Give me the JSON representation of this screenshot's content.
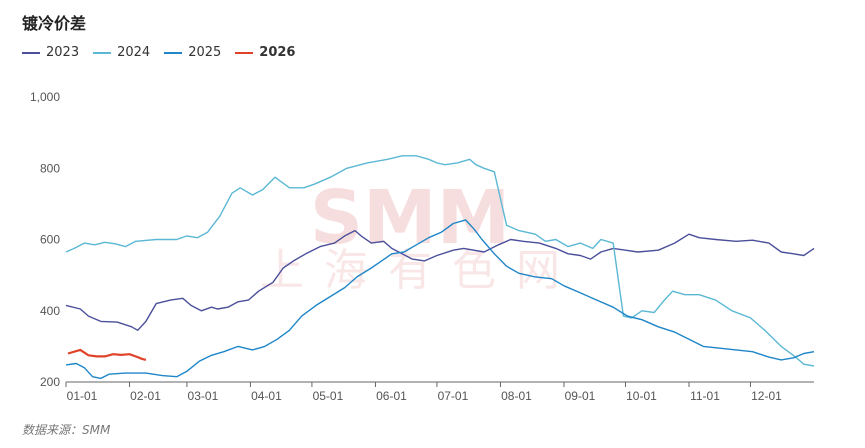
{
  "title": "镀冷价差",
  "source": "数据来源：SMM",
  "watermark": {
    "big": "SMM",
    "small": "上海有色网"
  },
  "chart_data": {
    "type": "line",
    "title": "镀冷价差",
    "ylim": [
      200,
      1000
    ],
    "yticks": [
      200,
      400,
      600,
      800,
      1000
    ],
    "ytick_labels": [
      "200",
      "400",
      "600",
      "800",
      "1,000"
    ],
    "xlim": [
      1,
      366
    ],
    "xticks": [
      {
        "label": "01-01",
        "day": 1
      },
      {
        "label": "02-01",
        "day": 32
      },
      {
        "label": "03-01",
        "day": 60
      },
      {
        "label": "04-01",
        "day": 91
      },
      {
        "label": "05-01",
        "day": 121
      },
      {
        "label": "06-01",
        "day": 152
      },
      {
        "label": "07-01",
        "day": 182
      },
      {
        "label": "08-01",
        "day": 213
      },
      {
        "label": "09-01",
        "day": 244
      },
      {
        "label": "10-01",
        "day": 274
      },
      {
        "label": "11-01",
        "day": 305
      },
      {
        "label": "12-01",
        "day": 335
      }
    ],
    "legend_position": "top-left",
    "grid": false,
    "series": [
      {
        "name": "2023",
        "color": "#4b4f9a",
        "points": [
          [
            1,
            415
          ],
          [
            8,
            405
          ],
          [
            12,
            385
          ],
          [
            18,
            370
          ],
          [
            26,
            368
          ],
          [
            33,
            355
          ],
          [
            36,
            345
          ],
          [
            40,
            370
          ],
          [
            45,
            420
          ],
          [
            52,
            430
          ],
          [
            58,
            435
          ],
          [
            62,
            415
          ],
          [
            67,
            400
          ],
          [
            72,
            410
          ],
          [
            75,
            405
          ],
          [
            80,
            410
          ],
          [
            85,
            425
          ],
          [
            90,
            430
          ],
          [
            95,
            455
          ],
          [
            102,
            480
          ],
          [
            107,
            520
          ],
          [
            112,
            540
          ],
          [
            118,
            560
          ],
          [
            125,
            580
          ],
          [
            132,
            590
          ],
          [
            137,
            610
          ],
          [
            142,
            625
          ],
          [
            145,
            610
          ],
          [
            150,
            590
          ],
          [
            156,
            595
          ],
          [
            160,
            575
          ],
          [
            165,
            560
          ],
          [
            170,
            545
          ],
          [
            176,
            540
          ],
          [
            182,
            555
          ],
          [
            190,
            570
          ],
          [
            195,
            575
          ],
          [
            205,
            565
          ],
          [
            212,
            585
          ],
          [
            218,
            600
          ],
          [
            224,
            595
          ],
          [
            232,
            590
          ],
          [
            240,
            575
          ],
          [
            246,
            560
          ],
          [
            252,
            555
          ],
          [
            257,
            545
          ],
          [
            262,
            565
          ],
          [
            268,
            575
          ],
          [
            274,
            570
          ],
          [
            280,
            565
          ],
          [
            290,
            570
          ],
          [
            298,
            590
          ],
          [
            305,
            615
          ],
          [
            310,
            605
          ],
          [
            318,
            600
          ],
          [
            328,
            595
          ],
          [
            336,
            598
          ],
          [
            344,
            590
          ],
          [
            350,
            565
          ],
          [
            356,
            560
          ],
          [
            361,
            555
          ],
          [
            366,
            575
          ]
        ]
      },
      {
        "name": "2024",
        "color": "#5bb8d4",
        "points": [
          [
            1,
            565
          ],
          [
            5,
            575
          ],
          [
            10,
            590
          ],
          [
            15,
            585
          ],
          [
            20,
            592
          ],
          [
            25,
            588
          ],
          [
            30,
            580
          ],
          [
            35,
            595
          ],
          [
            45,
            600
          ],
          [
            55,
            600
          ],
          [
            60,
            610
          ],
          [
            65,
            605
          ],
          [
            70,
            620
          ],
          [
            76,
            665
          ],
          [
            82,
            730
          ],
          [
            86,
            745
          ],
          [
            92,
            725
          ],
          [
            97,
            740
          ],
          [
            103,
            775
          ],
          [
            110,
            745
          ],
          [
            117,
            745
          ],
          [
            122,
            755
          ],
          [
            130,
            775
          ],
          [
            138,
            800
          ],
          [
            148,
            815
          ],
          [
            158,
            825
          ],
          [
            165,
            835
          ],
          [
            172,
            835
          ],
          [
            178,
            825
          ],
          [
            182,
            815
          ],
          [
            186,
            810
          ],
          [
            192,
            815
          ],
          [
            198,
            825
          ],
          [
            201,
            810
          ],
          [
            205,
            800
          ],
          [
            210,
            790
          ],
          [
            216,
            640
          ],
          [
            222,
            625
          ],
          [
            230,
            615
          ],
          [
            235,
            595
          ],
          [
            240,
            600
          ],
          [
            246,
            580
          ],
          [
            252,
            590
          ],
          [
            258,
            575
          ],
          [
            262,
            600
          ],
          [
            268,
            590
          ],
          [
            273,
            385
          ],
          [
            277,
            380
          ],
          [
            282,
            400
          ],
          [
            288,
            395
          ],
          [
            293,
            430
          ],
          [
            297,
            455
          ],
          [
            303,
            445
          ],
          [
            310,
            445
          ],
          [
            318,
            430
          ],
          [
            326,
            400
          ],
          [
            335,
            380
          ],
          [
            342,
            345
          ],
          [
            350,
            300
          ],
          [
            357,
            270
          ],
          [
            361,
            250
          ],
          [
            366,
            245
          ]
        ]
      },
      {
        "name": "2025",
        "color": "#1f86c8",
        "points": [
          [
            1,
            248
          ],
          [
            6,
            252
          ],
          [
            10,
            240
          ],
          [
            14,
            215
          ],
          [
            18,
            210
          ],
          [
            22,
            222
          ],
          [
            30,
            225
          ],
          [
            40,
            225
          ],
          [
            48,
            218
          ],
          [
            55,
            215
          ],
          [
            60,
            230
          ],
          [
            66,
            258
          ],
          [
            72,
            275
          ],
          [
            78,
            285
          ],
          [
            85,
            300
          ],
          [
            92,
            290
          ],
          [
            98,
            300
          ],
          [
            104,
            320
          ],
          [
            110,
            345
          ],
          [
            116,
            385
          ],
          [
            123,
            415
          ],
          [
            130,
            440
          ],
          [
            137,
            465
          ],
          [
            143,
            495
          ],
          [
            150,
            520
          ],
          [
            155,
            540
          ],
          [
            160,
            560
          ],
          [
            166,
            565
          ],
          [
            172,
            585
          ],
          [
            178,
            605
          ],
          [
            184,
            620
          ],
          [
            190,
            645
          ],
          [
            196,
            655
          ],
          [
            200,
            630
          ],
          [
            204,
            600
          ],
          [
            210,
            560
          ],
          [
            216,
            525
          ],
          [
            222,
            505
          ],
          [
            230,
            495
          ],
          [
            238,
            490
          ],
          [
            244,
            470
          ],
          [
            252,
            450
          ],
          [
            260,
            430
          ],
          [
            268,
            410
          ],
          [
            275,
            385
          ],
          [
            282,
            375
          ],
          [
            290,
            355
          ],
          [
            298,
            340
          ],
          [
            305,
            320
          ],
          [
            312,
            300
          ],
          [
            320,
            295
          ],
          [
            328,
            290
          ],
          [
            336,
            285
          ],
          [
            344,
            270
          ],
          [
            350,
            262
          ],
          [
            356,
            268
          ],
          [
            361,
            280
          ],
          [
            366,
            285
          ]
        ]
      },
      {
        "name": "2026",
        "color": "#e0432a",
        "points": [
          [
            2,
            280
          ],
          [
            5,
            285
          ],
          [
            8,
            290
          ],
          [
            12,
            275
          ],
          [
            16,
            272
          ],
          [
            20,
            272
          ],
          [
            24,
            278
          ],
          [
            28,
            276
          ],
          [
            32,
            278
          ],
          [
            36,
            270
          ],
          [
            38,
            265
          ],
          [
            40,
            262
          ]
        ]
      }
    ]
  }
}
